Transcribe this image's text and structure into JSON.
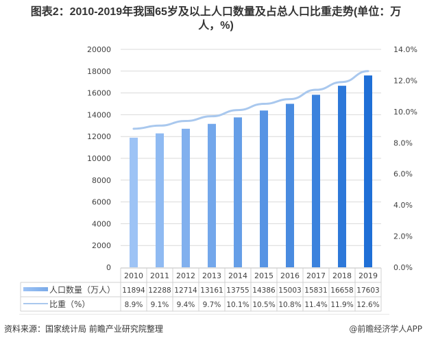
{
  "title": "图表2：2010-2019年我国65岁及以上人口数量及占总人口比重走势(单位：万人，%)",
  "title_line1": "图表2：2010-2019年我国65岁及以上人口数量及占总人口比重走势(单位：万",
  "title_line2": "人，%)",
  "footer": {
    "source": "资料来源：国家统计局 前瞻产业研究院整理",
    "credit": "@前瞻经济学人APP"
  },
  "colors": {
    "bar_start": "#9dc3f5",
    "bar_end": "#1f6fd6",
    "line": "#a9c8ee",
    "grid": "#d9d9d9",
    "text": "#404040"
  },
  "chart_data": {
    "type": "bar",
    "title": "图表2：2010-2019年我国65岁及以上人口数量及占总人口比重走势(单位：万人，%)",
    "categories": [
      "2010",
      "2011",
      "2012",
      "2013",
      "2014",
      "2015",
      "2016",
      "2017",
      "2018",
      "2019"
    ],
    "series": [
      {
        "name": "人口数量（万人）",
        "type": "bar",
        "axis": "left",
        "values": [
          11894,
          12288,
          12714,
          13161,
          13755,
          14386,
          15003,
          15831,
          16658,
          17603
        ],
        "labels": [
          "11894",
          "12288",
          "12714",
          "13161",
          "13755",
          "14386",
          "15003",
          "15831",
          "16658",
          "17603"
        ]
      },
      {
        "name": "比重（%）",
        "type": "line",
        "axis": "right",
        "values": [
          8.9,
          9.1,
          9.4,
          9.7,
          10.1,
          10.5,
          10.8,
          11.4,
          11.9,
          12.6
        ],
        "labels": [
          "8.9%",
          "9.1%",
          "9.4%",
          "9.7%",
          "10.1%",
          "10.5%",
          "10.8%",
          "11.4%",
          "11.9%",
          "12.6%"
        ]
      }
    ],
    "ylim": [
      0,
      20000
    ],
    "y2lim": [
      0,
      14
    ],
    "yticks": [
      "0",
      "2000",
      "4000",
      "6000",
      "8000",
      "10000",
      "12000",
      "14000",
      "16000",
      "18000",
      "20000"
    ],
    "y2ticks": [
      "0.0%",
      "2.0%",
      "4.0%",
      "6.0%",
      "8.0%",
      "10.0%",
      "12.0%",
      "14.0%"
    ],
    "xlabel": "",
    "ylabel": "",
    "y2label": "",
    "grid": true,
    "legend": "data-table-bottom"
  }
}
